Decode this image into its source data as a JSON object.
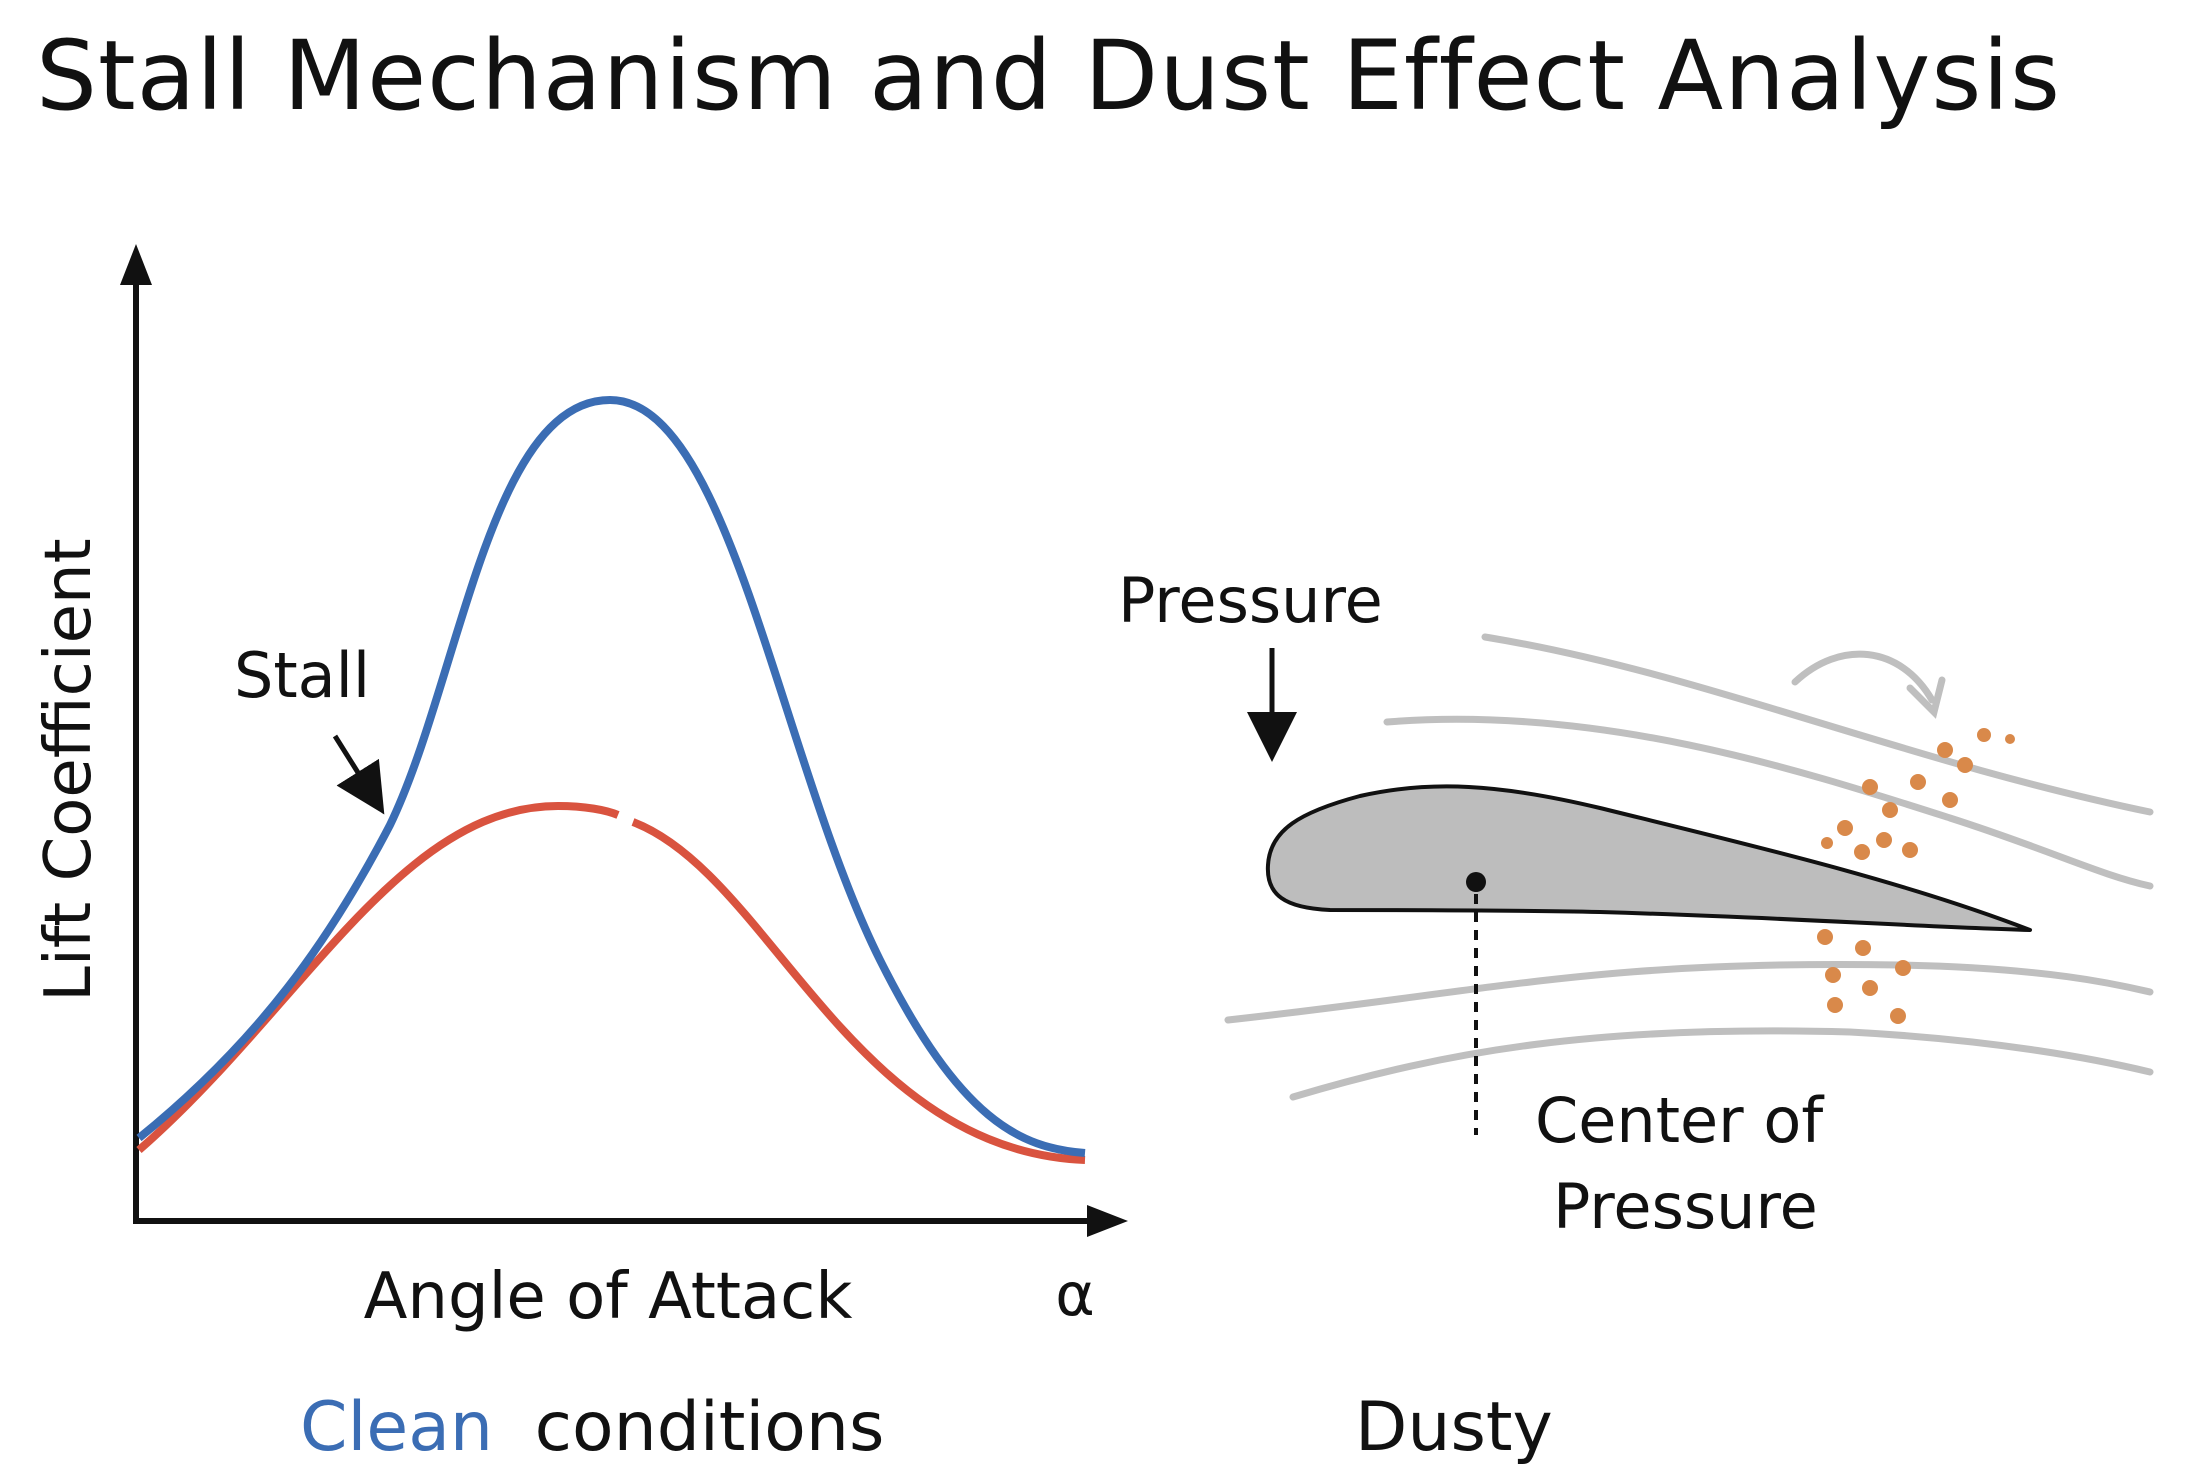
{
  "title": "Stall Mechanism and Dust Effect Analysis",
  "chart": {
    "ylabel": "Lift Coefficient",
    "xlabel": "Angle of Attack",
    "x_symbol": "α",
    "stall_label": "Stall",
    "caption_clean": "Clean",
    "caption_conditions": "conditions",
    "colors": {
      "clean": "#3b6db4",
      "dusty": "#d9533f",
      "axis": "#111111"
    }
  },
  "airfoil": {
    "pressure_label": "Pressure",
    "cop_line1": "Center of",
    "cop_line2": "Pressure",
    "caption": "Dusty",
    "colors": {
      "body": "#bdbdbd",
      "streamline": "#bfbfbf",
      "dust": "#d9894a"
    }
  }
}
